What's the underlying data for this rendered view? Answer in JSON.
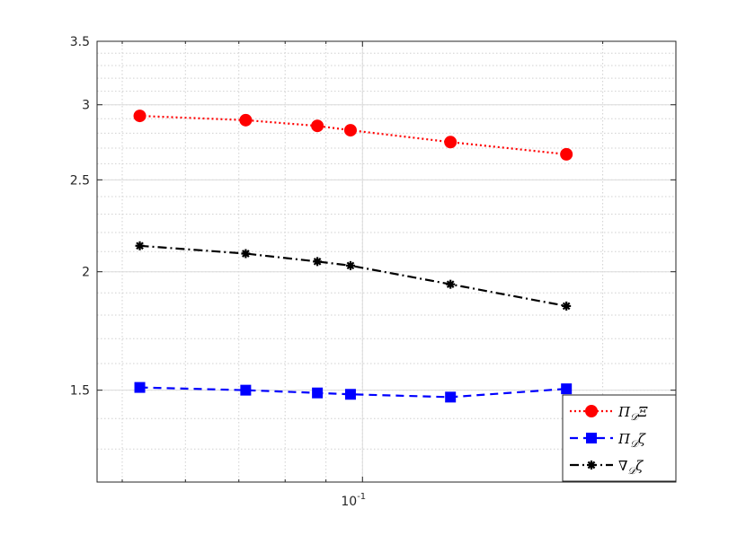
{
  "chart_data": {
    "type": "line",
    "xscale": "log",
    "yscale": "log",
    "grid": true,
    "minor_grid": true,
    "xlim": [
      0.0465,
      0.247
    ],
    "ylim": [
      1.2,
      3.5
    ],
    "x": [
      0.0526,
      0.0714,
      0.0878,
      0.0966,
      0.1289,
      0.1801
    ],
    "x_ticks": [
      {
        "value": 0.1,
        "label": "10",
        "exp": "-1"
      }
    ],
    "y_ticks": [
      {
        "value": 1.5,
        "label": "1.5"
      },
      {
        "value": 2,
        "label": "2"
      },
      {
        "value": 2.5,
        "label": "2.5"
      },
      {
        "value": 3,
        "label": "3"
      },
      {
        "value": 3.5,
        "label": "3.5"
      }
    ],
    "legend_position": "bottom-right",
    "series": [
      {
        "name": "Π𝒟Ξ",
        "name_parts": [
          "Π",
          "𝒟",
          "Ξ"
        ],
        "color": "#ff0000",
        "line_style": "dotted",
        "marker": "circle",
        "values": [
          2.92,
          2.89,
          2.85,
          2.82,
          2.74,
          2.66
        ]
      },
      {
        "name": "Π𝒟ζ",
        "name_parts": [
          "Π",
          "𝒟",
          "ζ"
        ],
        "color": "#0000ff",
        "line_style": "dashed",
        "marker": "square",
        "values": [
          1.51,
          1.5,
          1.49,
          1.485,
          1.475,
          1.505
        ]
      },
      {
        "name": "∇𝒟ζ",
        "name_parts": [
          "∇",
          "𝒟",
          "ζ"
        ],
        "color": "#000000",
        "line_style": "dashdot",
        "marker": "asterisk",
        "values": [
          2.13,
          2.09,
          2.05,
          2.03,
          1.94,
          1.84
        ]
      }
    ]
  }
}
